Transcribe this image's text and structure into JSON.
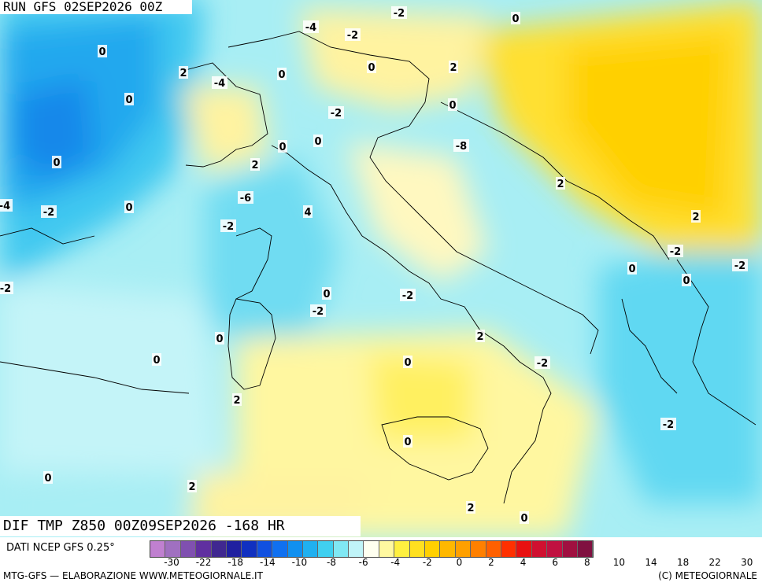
{
  "header": {
    "run_label": "RUN GFS 02SEP2026 00Z"
  },
  "footer_title": "DIF TMP Z850 00Z09SEP2026 -168 HR",
  "legend": {
    "source": "DATI NCEP GFS 0.25°",
    "tick_labels": [
      "-30",
      "-22",
      "-18",
      "-14",
      "-10",
      "-8",
      "-6",
      "-4",
      "-2",
      "0",
      "2",
      "4",
      "6",
      "8",
      "10",
      "14",
      "18",
      "22",
      "30"
    ],
    "colors": [
      "#c080d0",
      "#a070c0",
      "#8050b0",
      "#6030a0",
      "#402890",
      "#2020a0",
      "#1030c0",
      "#1050e0",
      "#1070f0",
      "#1090f0",
      "#20b0f0",
      "#40d0f0",
      "#80e8f4",
      "#c0f4f8",
      "#fffff0",
      "#fff8a0",
      "#fff040",
      "#ffe020",
      "#ffd000",
      "#ffb800",
      "#ffa000",
      "#ff8000",
      "#ff6000",
      "#ff3000",
      "#e81010",
      "#d01030",
      "#c01040",
      "#a01040",
      "#801040"
    ],
    "credit": "MTG-GFS — ELABORAZIONE WWW.METEOGIORNALE.IT",
    "copyright": "(C) METEOGIORNALE"
  },
  "map": {
    "field": "temperature anomaly at 850 hPa (°C)",
    "contour_labels": [
      "-2",
      "0",
      "-4",
      "-2",
      "0",
      "0",
      "2",
      "2",
      "-4",
      "0",
      "0",
      "0",
      "-2",
      "0",
      "0",
      "-8",
      "0",
      "2",
      "2",
      "-6",
      "-4",
      "-2",
      "0",
      "4",
      "-2",
      "2",
      "-2",
      "0",
      "-2",
      "-2",
      "0",
      "0",
      "-2",
      "-2",
      "0",
      "2",
      "0",
      "-2",
      "0",
      "2",
      "-2",
      "0",
      "0",
      "2",
      "2",
      "0"
    ]
  }
}
